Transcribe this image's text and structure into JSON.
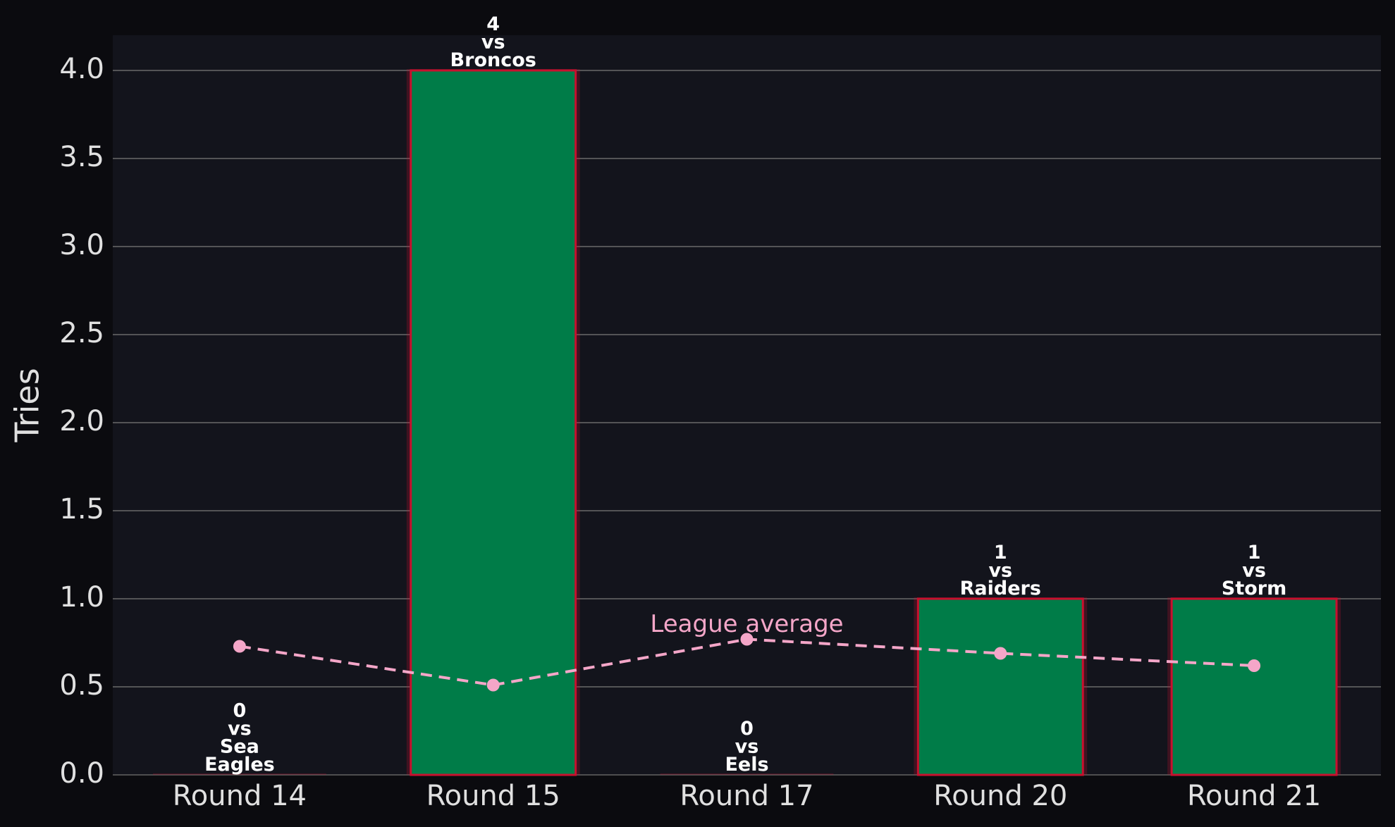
{
  "chart_data": {
    "type": "bar",
    "y_label": "Tries",
    "categories": [
      "Round 14",
      "Round 15",
      "Round 17",
      "Round 20",
      "Round 21"
    ],
    "values": [
      0,
      4,
      0,
      1,
      1
    ],
    "value_labels": [
      [
        "0",
        "vs",
        "Sea",
        "Eagles"
      ],
      [
        "4",
        "vs",
        "Broncos"
      ],
      [
        "0",
        "vs",
        "Eels"
      ],
      [
        "1",
        "vs",
        "Raiders"
      ],
      [
        "1",
        "vs",
        "Storm"
      ]
    ],
    "color": "#007c48",
    "edge_color": "#c8102e",
    "line_series": {
      "name": "League average",
      "color": "#f4a6c8",
      "dashed": true,
      "values": [
        0.73,
        0.51,
        0.77,
        0.69,
        0.62
      ]
    },
    "ylim": [
      0,
      4.2
    ],
    "yticks": [
      {
        "value": 0,
        "label": "0.0"
      },
      0.5,
      {
        "value": 1,
        "label": "1.0"
      },
      1.5,
      {
        "value": 2,
        "label": "2.0"
      },
      2.5,
      {
        "value": 3,
        "label": "3.0"
      },
      3.5,
      {
        "value": 4,
        "label": "4.0"
      }
    ],
    "grid": true
  }
}
